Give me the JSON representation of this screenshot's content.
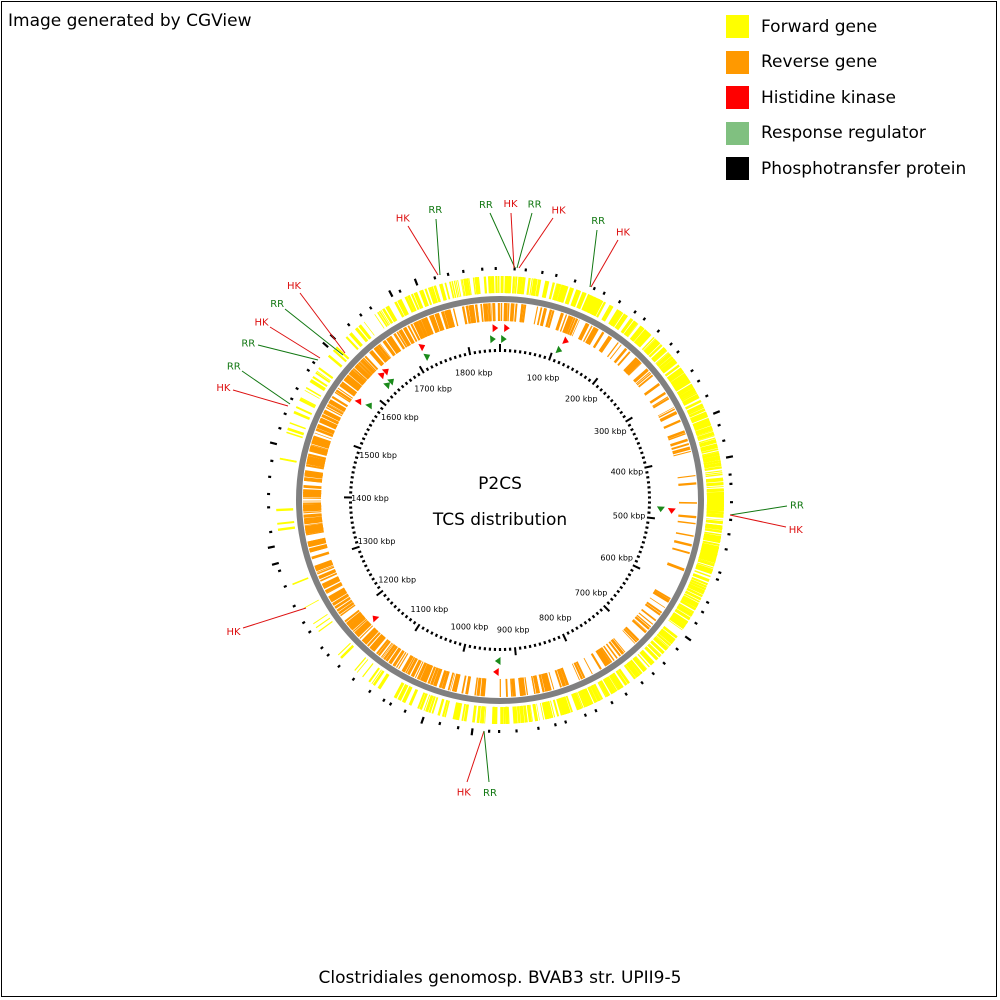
{
  "header": {
    "credit": "Image generated by CGView"
  },
  "legend": [
    {
      "label": "Forward gene",
      "color": "#ffff00",
      "name": "forward-gene"
    },
    {
      "label": "Reverse gene",
      "color": "#ff9900",
      "name": "reverse-gene"
    },
    {
      "label": "Histidine kinase",
      "color": "#ff0000",
      "name": "histidine-kinase"
    },
    {
      "label": "Response regulator",
      "color": "#80c080",
      "name": "response-regulator"
    },
    {
      "label": "Phosphotransfer protein",
      "color": "#000000",
      "name": "phosphotransfer-protein"
    }
  ],
  "center": {
    "line1": "P2CS",
    "line2": "TCS distribution"
  },
  "footer": {
    "organism": "Clostridiales genomosp. BVAB3 str. UPII9-5"
  },
  "map": {
    "genome_length_kbp": 1860,
    "tick_labels": [
      "100 kbp",
      "200 kbp",
      "300 kbp",
      "400 kbp",
      "500 kbp",
      "600 kbp",
      "700 kbp",
      "800 kbp",
      "900 kbp",
      "1000 kbp",
      "1100 kbp",
      "1200 kbp",
      "1300 kbp",
      "1400 kbp",
      "1500 kbp",
      "1600 kbp",
      "1700 kbp",
      "1800 kbp"
    ],
    "colors": {
      "forward": "#ffff00",
      "reverse": "#ff9900",
      "hk": "#ff0000",
      "rr": "#1a8a1a",
      "hk_label": "#dd1111",
      "rr_label": "#117711",
      "backbone": "#808080",
      "tick": "#000000"
    },
    "callouts": [
      {
        "label": "HK",
        "type": "hk",
        "pos_kbp": 1720
      },
      {
        "label": "RR",
        "type": "rr",
        "pos_kbp": 1720
      },
      {
        "label": "RR",
        "type": "rr",
        "pos_kbp": 1845
      },
      {
        "label": "HK",
        "type": "hk",
        "pos_kbp": 1850
      },
      {
        "label": "RR",
        "type": "rr",
        "pos_kbp": 5
      },
      {
        "label": "HK",
        "type": "hk",
        "pos_kbp": 10
      },
      {
        "label": "RR",
        "type": "rr",
        "pos_kbp": 110
      },
      {
        "label": "HK",
        "type": "hk",
        "pos_kbp": 115
      },
      {
        "label": "HK",
        "type": "hk",
        "pos_kbp": 1645
      },
      {
        "label": "RR",
        "type": "rr",
        "pos_kbp": 1640
      },
      {
        "label": "HK",
        "type": "hk",
        "pos_kbp": 1635
      },
      {
        "label": "RR",
        "type": "rr",
        "pos_kbp": 1630
      },
      {
        "label": "RR",
        "type": "rr",
        "pos_kbp": 1580
      },
      {
        "label": "HK",
        "type": "hk",
        "pos_kbp": 1575
      },
      {
        "label": "RR",
        "type": "rr",
        "pos_kbp": 480
      },
      {
        "label": "HK",
        "type": "hk",
        "pos_kbp": 482
      },
      {
        "label": "HK",
        "type": "hk",
        "pos_kbp": 1170
      },
      {
        "label": "HK",
        "type": "hk",
        "pos_kbp": 935
      },
      {
        "label": "RR",
        "type": "rr",
        "pos_kbp": 932
      }
    ]
  }
}
